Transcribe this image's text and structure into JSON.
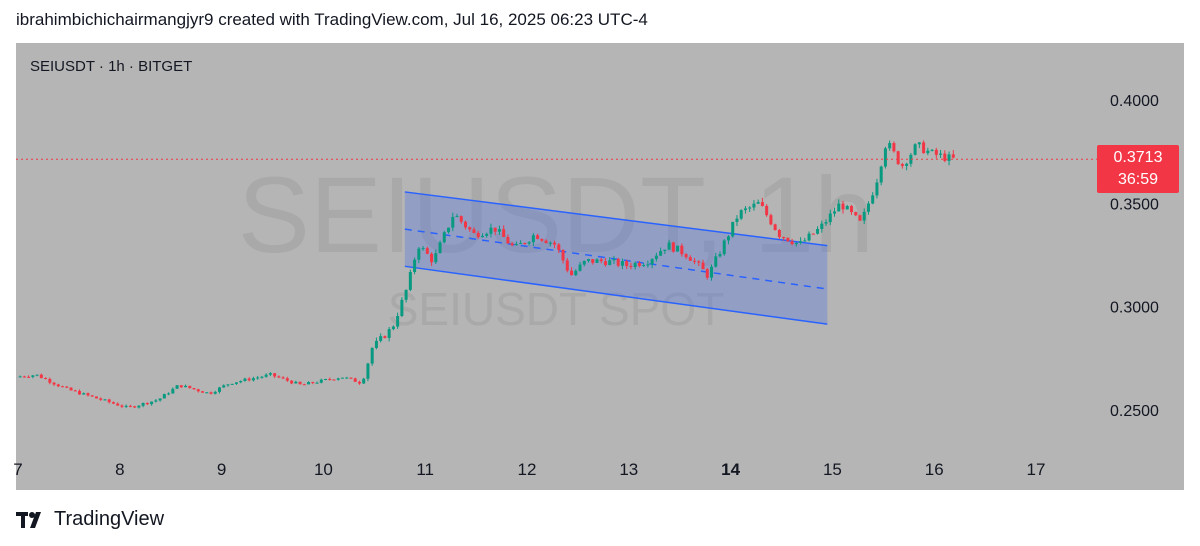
{
  "header": {
    "text": "ibrahimbichichairmangjyr9 created with TradingView.com, Jul 16, 2025 06:23 UTC-4"
  },
  "symbol_line": "SEIUSDT · 1h · BITGET",
  "watermark": {
    "big": "SEIUSDT, 1h",
    "small": "SEIUSDT SPOT"
  },
  "last_price": {
    "value": "0.3713",
    "countdown": "36:59"
  },
  "footer": {
    "brand": "TradingView"
  },
  "colors": {
    "background": "#b5b5b5",
    "up": "#089981",
    "down": "#f23645",
    "channel": "#2962ff",
    "price_line": "#f23645"
  },
  "chart_data": {
    "type": "candlestick",
    "timeframe": "1h",
    "x_axis_ticks": [
      "7",
      "8",
      "9",
      "10",
      "11",
      "12",
      "13",
      "14",
      "15",
      "16",
      "17"
    ],
    "y_axis_ticks": [
      "0.4000",
      "0.3500",
      "0.3000",
      "0.2500"
    ],
    "ylim": [
      0.23,
      0.415
    ],
    "last_price": 0.3713,
    "price_path": [
      {
        "day": 7.0,
        "price": 0.266
      },
      {
        "day": 7.2,
        "price": 0.267
      },
      {
        "day": 7.5,
        "price": 0.26
      },
      {
        "day": 7.9,
        "price": 0.254
      },
      {
        "day": 8.1,
        "price": 0.251
      },
      {
        "day": 8.4,
        "price": 0.255
      },
      {
        "day": 8.6,
        "price": 0.262
      },
      {
        "day": 8.9,
        "price": 0.258
      },
      {
        "day": 9.1,
        "price": 0.263
      },
      {
        "day": 9.5,
        "price": 0.267
      },
      {
        "day": 9.8,
        "price": 0.262
      },
      {
        "day": 10.2,
        "price": 0.266
      },
      {
        "day": 10.4,
        "price": 0.263
      },
      {
        "day": 10.5,
        "price": 0.28
      },
      {
        "day": 10.7,
        "price": 0.29
      },
      {
        "day": 10.85,
        "price": 0.31
      },
      {
        "day": 10.95,
        "price": 0.33
      },
      {
        "day": 11.1,
        "price": 0.322
      },
      {
        "day": 11.3,
        "price": 0.345
      },
      {
        "day": 11.5,
        "price": 0.335
      },
      {
        "day": 11.7,
        "price": 0.338
      },
      {
        "day": 11.9,
        "price": 0.328
      },
      {
        "day": 12.1,
        "price": 0.335
      },
      {
        "day": 12.3,
        "price": 0.33
      },
      {
        "day": 12.45,
        "price": 0.315
      },
      {
        "day": 12.6,
        "price": 0.322
      },
      {
        "day": 12.8,
        "price": 0.322
      },
      {
        "day": 13.0,
        "price": 0.32
      },
      {
        "day": 13.2,
        "price": 0.322
      },
      {
        "day": 13.4,
        "price": 0.33
      },
      {
        "day": 13.6,
        "price": 0.325
      },
      {
        "day": 13.8,
        "price": 0.315
      },
      {
        "day": 13.95,
        "price": 0.33
      },
      {
        "day": 14.1,
        "price": 0.345
      },
      {
        "day": 14.3,
        "price": 0.35
      },
      {
        "day": 14.5,
        "price": 0.335
      },
      {
        "day": 14.7,
        "price": 0.33
      },
      {
        "day": 14.9,
        "price": 0.338
      },
      {
        "day": 15.1,
        "price": 0.35
      },
      {
        "day": 15.3,
        "price": 0.34
      },
      {
        "day": 15.45,
        "price": 0.36
      },
      {
        "day": 15.55,
        "price": 0.38
      },
      {
        "day": 15.7,
        "price": 0.368
      },
      {
        "day": 15.85,
        "price": 0.378
      },
      {
        "day": 16.0,
        "price": 0.374
      },
      {
        "day": 16.2,
        "price": 0.3713
      }
    ],
    "channel": {
      "upper": [
        {
          "day": 10.8,
          "price": 0.3555
        },
        {
          "day": 14.95,
          "price": 0.3295
        }
      ],
      "middle": [
        {
          "day": 10.8,
          "price": 0.3375
        },
        {
          "day": 14.95,
          "price": 0.3085
        }
      ],
      "lower": [
        {
          "day": 10.8,
          "price": 0.3195
        },
        {
          "day": 14.95,
          "price": 0.2915
        }
      ]
    }
  }
}
